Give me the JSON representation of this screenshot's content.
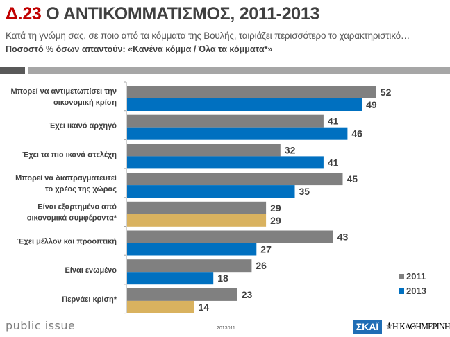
{
  "header": {
    "code": "Δ.23",
    "title": "Ο ΑΝΤΙΚΟΜΜΑΤΙΣΜΟΣ, 2011-2013",
    "subtitle": "Κατά τη γνώμη σας, σε ποιο από τα κόμματα της Βουλής, ταιριάζει περισσότερο το χαρακτηριστικό…",
    "subtitle2": "Ποσοστό % όσων απαντούν: «Κανένα κόμμα / Όλα τα κόμματα*»"
  },
  "colors": {
    "series_2011": "#808080",
    "series_2013": "#0070c0",
    "highlight_2013": "#d9b25f"
  },
  "chart_data": {
    "type": "bar",
    "orientation": "horizontal",
    "title": "Ο ΑΝΤΙΚΟΜΜΑΤΙΣΜΟΣ, 2011-2013",
    "xlabel": "",
    "ylabel": "",
    "xlim": [
      0,
      60
    ],
    "grid": false,
    "legend_position": "bottom-right",
    "categories": [
      [
        "Μπορεί να αντιμετωπίσει την",
        "οικονομική κρίση"
      ],
      [
        "Έχει ικανό αρχηγό"
      ],
      [
        "Έχει τα πιο ικανά στελέχη"
      ],
      [
        "Μπορεί να διαπραγματευτεί",
        "το χρέος της χώρας"
      ],
      [
        "Είναι εξαρτημένο από",
        "οικονομικά συμφέροντα*"
      ],
      [
        "Έχει μέλλον και προοπτική"
      ],
      [
        "Είναι ενωμένο"
      ],
      [
        "Περνάει κρίση*"
      ]
    ],
    "highlighted_categories": [
      4,
      7
    ],
    "series": [
      {
        "name": "2011",
        "values": [
          52,
          41,
          32,
          45,
          29,
          43,
          26,
          23
        ]
      },
      {
        "name": "2013",
        "values": [
          49,
          46,
          41,
          35,
          29,
          27,
          18,
          14
        ]
      }
    ]
  },
  "footer": {
    "brand": "public issue",
    "code": "2013011",
    "logo1": "ΣΚΑΪ",
    "logo2": "Η ΚΑΘΗΜΕΡΙΝΗ"
  }
}
